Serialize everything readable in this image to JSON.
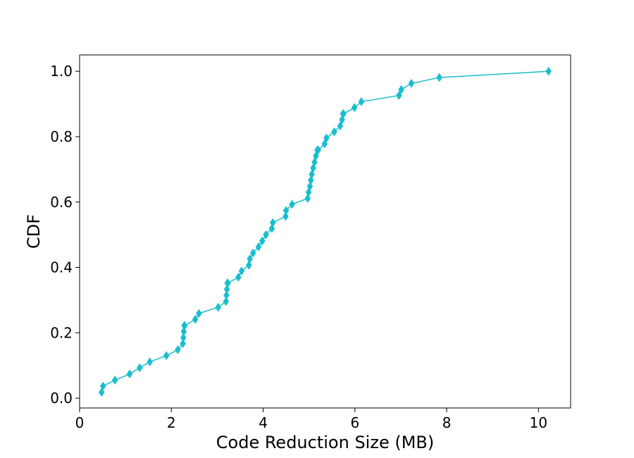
{
  "chart_data": {
    "type": "line",
    "title": "",
    "xlabel": "Code Reduction Size (MB)",
    "ylabel": "CDF",
    "xlim": [
      0,
      10.7
    ],
    "ylim": [
      -0.03,
      1.05
    ],
    "x_ticks": [
      0,
      2,
      4,
      6,
      8,
      10
    ],
    "x_tick_labels": [
      "0",
      "2",
      "4",
      "6",
      "8",
      "10"
    ],
    "y_ticks": [
      0.0,
      0.2,
      0.4,
      0.6,
      0.8,
      1.0
    ],
    "y_tick_labels": [
      "0.0",
      "0.2",
      "0.4",
      "0.6",
      "0.8",
      "1.0"
    ],
    "grid": false,
    "legend": "none",
    "marker": "diamond",
    "color": "#17becf",
    "series": [
      {
        "x": [
          0.48,
          0.51,
          0.77,
          1.09,
          1.31,
          1.53,
          1.89,
          2.14,
          2.25,
          2.26,
          2.27,
          2.28,
          2.29,
          2.52,
          2.6,
          3.02,
          3.19,
          3.2,
          3.21,
          3.22,
          3.23,
          3.46,
          3.53,
          3.69,
          3.71,
          3.78,
          3.9,
          3.98,
          4.06,
          4.19,
          4.21,
          4.49,
          4.5,
          4.63,
          4.97,
          4.99,
          5.02,
          5.04,
          5.06,
          5.09,
          5.12,
          5.15,
          5.18,
          5.2,
          5.34,
          5.38,
          5.55,
          5.68,
          5.72,
          5.74,
          5.75,
          5.99,
          6.14,
          6.96,
          7.01,
          7.23,
          7.84,
          10.22
        ],
        "y": [
          0.018,
          0.037,
          0.055,
          0.074,
          0.093,
          0.111,
          0.13,
          0.148,
          0.167,
          0.185,
          0.204,
          0.222,
          0.222,
          0.241,
          0.259,
          0.278,
          0.296,
          0.315,
          0.333,
          0.352,
          0.352,
          0.37,
          0.389,
          0.407,
          0.426,
          0.444,
          0.463,
          0.481,
          0.5,
          0.519,
          0.537,
          0.556,
          0.574,
          0.593,
          0.611,
          0.63,
          0.648,
          0.667,
          0.685,
          0.704,
          0.722,
          0.741,
          0.759,
          0.759,
          0.778,
          0.796,
          0.815,
          0.833,
          0.852,
          0.87,
          0.87,
          0.889,
          0.907,
          0.926,
          0.944,
          0.963,
          0.981,
          1.0
        ]
      }
    ]
  }
}
